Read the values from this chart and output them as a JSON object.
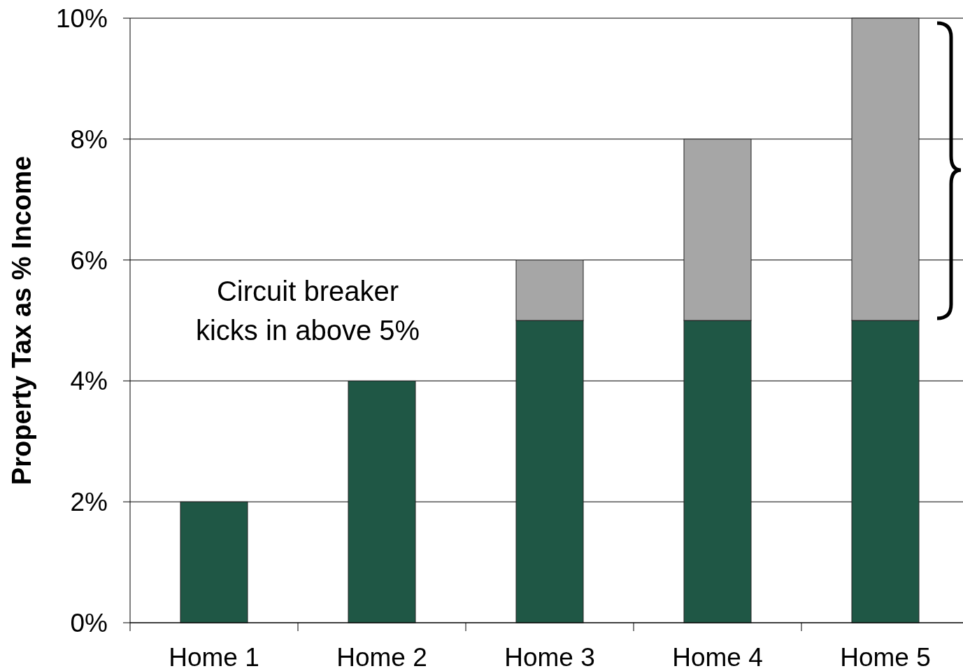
{
  "chart_data": {
    "type": "bar",
    "stacked": true,
    "ylabel": "Property Tax as % Income",
    "categories": [
      "Home 1",
      "Home 2",
      "Home 3",
      "Home 4",
      "Home 5"
    ],
    "series": [
      {
        "color": "#1f5745",
        "values": [
          2,
          4,
          5,
          5,
          5
        ]
      },
      {
        "color": "#a6a6a6",
        "values": [
          null,
          null,
          1,
          3,
          5
        ]
      }
    ],
    "ylim": [
      0,
      10
    ],
    "yticks": [
      {
        "value": 0,
        "label": "0%"
      },
      {
        "value": 2,
        "label": "2%"
      },
      {
        "value": 4,
        "label": "4%"
      },
      {
        "value": 6,
        "label": "6%"
      },
      {
        "value": 8,
        "label": "8%"
      },
      {
        "value": 10,
        "label": "10%"
      }
    ],
    "grid": "y",
    "annotations": [
      "Circuit breaker kicks in above 5%"
    ]
  }
}
